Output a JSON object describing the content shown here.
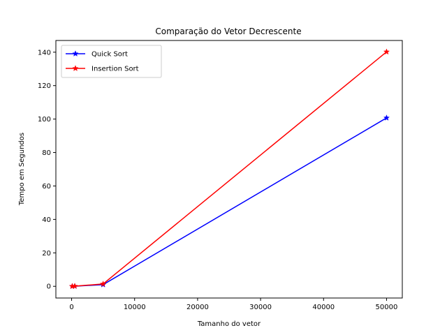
{
  "chart_data": {
    "type": "line",
    "title": "Comparação do Vetor Decrescente",
    "xlabel": "Tamanho do vetor",
    "ylabel": "Tempo em Segundos",
    "xlim": [
      -2500,
      52500
    ],
    "ylim": [
      -7,
      147
    ],
    "xticks": [
      0,
      10000,
      20000,
      30000,
      40000,
      50000
    ],
    "yticks": [
      0,
      20,
      40,
      60,
      80,
      100,
      120,
      140
    ],
    "grid": false,
    "legend_position": "top-left",
    "x": [
      100,
      500,
      5000,
      50000
    ],
    "series": [
      {
        "name": "Quick Sort",
        "color": "#0000ff",
        "marker": "star",
        "values": [
          0.01,
          0.05,
          1.0,
          100.7
        ]
      },
      {
        "name": "Insertion Sort",
        "color": "#ff0000",
        "marker": "star",
        "values": [
          0.01,
          0.1,
          1.4,
          140.2
        ]
      }
    ]
  }
}
